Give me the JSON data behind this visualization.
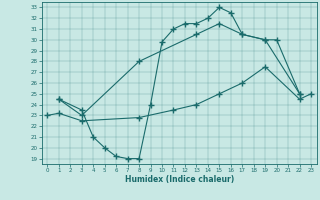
{
  "xlabel": "Humidex (Indice chaleur)",
  "bg_color": "#c8e8e4",
  "line_color": "#1a6b6b",
  "xlim": [
    -0.5,
    23.5
  ],
  "ylim": [
    18.5,
    33.5
  ],
  "yticks": [
    19,
    20,
    21,
    22,
    23,
    24,
    25,
    26,
    27,
    28,
    29,
    30,
    31,
    32,
    33
  ],
  "xticks": [
    0,
    1,
    2,
    3,
    4,
    5,
    6,
    7,
    8,
    9,
    10,
    11,
    12,
    13,
    14,
    15,
    16,
    17,
    18,
    19,
    20,
    21,
    22,
    23
  ],
  "curve1_x": [
    1,
    3,
    4,
    5,
    6,
    7,
    8,
    9,
    10,
    11,
    12,
    13,
    14,
    15,
    16,
    17,
    19,
    20,
    22
  ],
  "curve1_y": [
    24.5,
    23.5,
    21.0,
    20.0,
    19.2,
    19.0,
    19.0,
    24.0,
    29.8,
    31.0,
    31.5,
    31.5,
    32.0,
    33.0,
    32.5,
    30.5,
    30.0,
    30.0,
    25.0
  ],
  "curve2_x": [
    1,
    3,
    8,
    13,
    15,
    17,
    19,
    22
  ],
  "curve2_y": [
    24.5,
    23.0,
    28.0,
    30.5,
    31.5,
    30.5,
    30.0,
    25.0
  ],
  "curve3_x": [
    0,
    1,
    3,
    8,
    11,
    13,
    15,
    17,
    19,
    22,
    23
  ],
  "curve3_y": [
    23.0,
    23.2,
    22.5,
    22.8,
    23.5,
    24.0,
    25.0,
    26.0,
    27.5,
    24.5,
    25.0
  ]
}
